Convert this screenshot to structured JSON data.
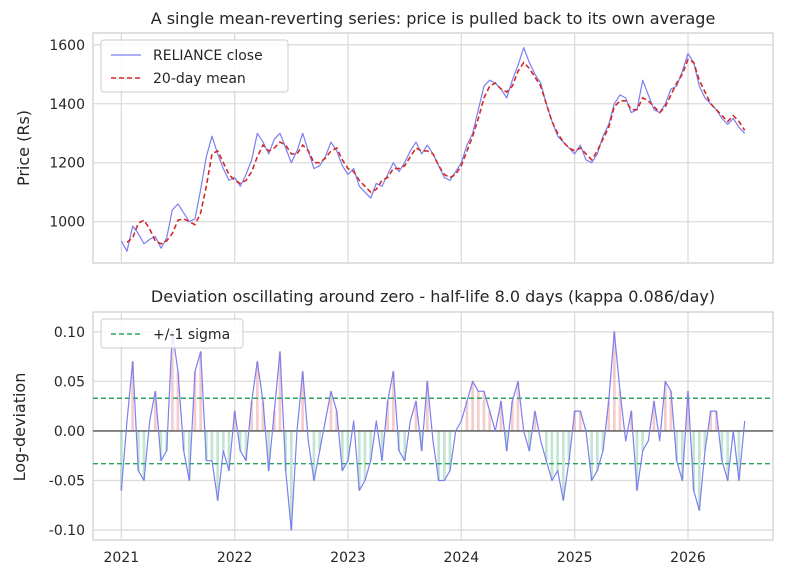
{
  "chart_data": [
    {
      "type": "line",
      "title": "A single mean-reverting series: price is pulled back to its own average",
      "xlabel": "",
      "ylabel": "Price (Rs)",
      "xlim": [
        2020.75,
        2026.75
      ],
      "ylim": [
        860,
        1640
      ],
      "yticks": [
        1000,
        1200,
        1400,
        1600
      ],
      "grid": true,
      "legend": "top-left",
      "series": [
        {
          "name": "RELIANCE close",
          "color": "#7b7ff0",
          "x": [
            2021.0,
            2021.05,
            2021.1,
            2021.15,
            2021.2,
            2021.25,
            2021.3,
            2021.35,
            2021.4,
            2021.45,
            2021.5,
            2021.55,
            2021.6,
            2021.65,
            2021.7,
            2021.75,
            2021.8,
            2021.85,
            2021.9,
            2021.95,
            2022.0,
            2022.05,
            2022.1,
            2022.15,
            2022.2,
            2022.25,
            2022.3,
            2022.35,
            2022.4,
            2022.45,
            2022.5,
            2022.55,
            2022.6,
            2022.65,
            2022.7,
            2022.75,
            2022.8,
            2022.85,
            2022.9,
            2022.95,
            2023.0,
            2023.05,
            2023.1,
            2023.15,
            2023.2,
            2023.25,
            2023.3,
            2023.35,
            2023.4,
            2023.45,
            2023.5,
            2023.55,
            2023.6,
            2023.65,
            2023.7,
            2023.75,
            2023.8,
            2023.85,
            2023.9,
            2023.95,
            2024.0,
            2024.05,
            2024.1,
            2024.15,
            2024.2,
            2024.25,
            2024.3,
            2024.35,
            2024.4,
            2024.45,
            2024.5,
            2024.55,
            2024.6,
            2024.65,
            2024.7,
            2024.75,
            2024.8,
            2024.85,
            2024.9,
            2024.95,
            2025.0,
            2025.05,
            2025.1,
            2025.15,
            2025.2,
            2025.25,
            2025.3,
            2025.35,
            2025.4,
            2025.45,
            2025.5,
            2025.55,
            2025.6,
            2025.65,
            2025.7,
            2025.75,
            2025.8,
            2025.85,
            2025.9,
            2025.95,
            2026.0,
            2026.05,
            2026.1,
            2026.15,
            2026.2,
            2026.25,
            2026.3,
            2026.35,
            2026.4,
            2026.45,
            2026.5
          ],
          "values": [
            935,
            900,
            985,
            960,
            925,
            940,
            950,
            910,
            945,
            1040,
            1060,
            1030,
            1000,
            1010,
            1110,
            1220,
            1290,
            1230,
            1180,
            1140,
            1150,
            1120,
            1160,
            1210,
            1300,
            1270,
            1230,
            1280,
            1300,
            1250,
            1200,
            1240,
            1300,
            1240,
            1180,
            1190,
            1220,
            1270,
            1240,
            1190,
            1160,
            1180,
            1120,
            1100,
            1080,
            1130,
            1120,
            1160,
            1200,
            1170,
            1200,
            1240,
            1270,
            1230,
            1260,
            1230,
            1190,
            1150,
            1140,
            1170,
            1200,
            1260,
            1300,
            1380,
            1460,
            1480,
            1470,
            1450,
            1420,
            1480,
            1530,
            1590,
            1540,
            1500,
            1470,
            1400,
            1340,
            1290,
            1270,
            1250,
            1230,
            1260,
            1210,
            1200,
            1230,
            1290,
            1330,
            1400,
            1430,
            1420,
            1370,
            1380,
            1480,
            1430,
            1380,
            1370,
            1400,
            1450,
            1460,
            1510,
            1570,
            1540,
            1460,
            1420,
            1400,
            1380,
            1350,
            1330,
            1350,
            1320,
            1300
          ]
        },
        {
          "name": "20-day mean",
          "color": "#d62728",
          "x": [
            2021.05,
            2021.1,
            2021.15,
            2021.2,
            2021.25,
            2021.3,
            2021.35,
            2021.4,
            2021.45,
            2021.5,
            2021.55,
            2021.6,
            2021.65,
            2021.7,
            2021.75,
            2021.8,
            2021.85,
            2021.9,
            2021.95,
            2022.0,
            2022.05,
            2022.1,
            2022.15,
            2022.2,
            2022.25,
            2022.3,
            2022.35,
            2022.4,
            2022.45,
            2022.5,
            2022.55,
            2022.6,
            2022.65,
            2022.7,
            2022.75,
            2022.8,
            2022.85,
            2022.9,
            2022.95,
            2023.0,
            2023.05,
            2023.1,
            2023.15,
            2023.2,
            2023.25,
            2023.3,
            2023.35,
            2023.4,
            2023.45,
            2023.5,
            2023.55,
            2023.6,
            2023.65,
            2023.7,
            2023.75,
            2023.8,
            2023.85,
            2023.9,
            2023.95,
            2024.0,
            2024.05,
            2024.1,
            2024.15,
            2024.2,
            2024.25,
            2024.3,
            2024.35,
            2024.4,
            2024.45,
            2024.5,
            2024.55,
            2024.6,
            2024.65,
            2024.7,
            2024.75,
            2024.8,
            2024.85,
            2024.9,
            2024.95,
            2025.0,
            2025.05,
            2025.1,
            2025.15,
            2025.2,
            2025.25,
            2025.3,
            2025.35,
            2025.4,
            2025.45,
            2025.5,
            2025.55,
            2025.6,
            2025.65,
            2025.7,
            2025.75,
            2025.8,
            2025.85,
            2025.9,
            2025.95,
            2026.0,
            2026.05,
            2026.1,
            2026.15,
            2026.2,
            2026.25,
            2026.3,
            2026.35,
            2026.4,
            2026.45,
            2026.5
          ],
          "values": [
            930,
            945,
            995,
            1005,
            975,
            935,
            925,
            935,
            960,
            1005,
            1010,
            1000,
            990,
            1030,
            1120,
            1230,
            1240,
            1200,
            1160,
            1140,
            1130,
            1140,
            1170,
            1220,
            1260,
            1240,
            1250,
            1270,
            1260,
            1230,
            1230,
            1260,
            1240,
            1200,
            1200,
            1215,
            1240,
            1250,
            1210,
            1180,
            1170,
            1140,
            1120,
            1100,
            1110,
            1140,
            1150,
            1180,
            1180,
            1190,
            1220,
            1250,
            1240,
            1240,
            1230,
            1190,
            1160,
            1150,
            1160,
            1190,
            1240,
            1290,
            1350,
            1420,
            1460,
            1470,
            1450,
            1440,
            1460,
            1510,
            1540,
            1520,
            1490,
            1460,
            1400,
            1340,
            1300,
            1270,
            1250,
            1240,
            1250,
            1230,
            1210,
            1240,
            1280,
            1320,
            1390,
            1410,
            1410,
            1380,
            1380,
            1420,
            1410,
            1390,
            1370,
            1390,
            1430,
            1470,
            1500,
            1550,
            1540,
            1480,
            1440,
            1400,
            1380,
            1360,
            1340,
            1360,
            1340,
            1310
          ]
        }
      ]
    },
    {
      "type": "line",
      "title": "Deviation oscillating around zero  -  half-life 8.0 days (kappa 0.086/day)",
      "xlabel": "",
      "ylabel": "Log-deviation",
      "xlim": [
        2020.75,
        2026.75
      ],
      "ylim": [
        -0.11,
        0.12
      ],
      "yticks": [
        -0.1,
        -0.05,
        0.0,
        0.05,
        0.1
      ],
      "xticks": [
        "2021",
        "2022",
        "2023",
        "2024",
        "2025",
        "2026"
      ],
      "grid": true,
      "legend": "top-left",
      "sigma": 0.033,
      "series": [
        {
          "name": "",
          "color": "#7b7ff0",
          "x": [
            2021.0,
            2021.05,
            2021.1,
            2021.15,
            2021.2,
            2021.25,
            2021.3,
            2021.35,
            2021.4,
            2021.45,
            2021.5,
            2021.55,
            2021.6,
            2021.65,
            2021.7,
            2021.75,
            2021.8,
            2021.85,
            2021.9,
            2021.95,
            2022.0,
            2022.05,
            2022.1,
            2022.15,
            2022.2,
            2022.25,
            2022.3,
            2022.35,
            2022.4,
            2022.45,
            2022.5,
            2022.55,
            2022.6,
            2022.65,
            2022.7,
            2022.75,
            2022.8,
            2022.85,
            2022.9,
            2022.95,
            2023.0,
            2023.05,
            2023.1,
            2023.15,
            2023.2,
            2023.25,
            2023.3,
            2023.35,
            2023.4,
            2023.45,
            2023.5,
            2023.55,
            2023.6,
            2023.65,
            2023.7,
            2023.75,
            2023.8,
            2023.85,
            2023.9,
            2023.95,
            2024.0,
            2024.05,
            2024.1,
            2024.15,
            2024.2,
            2024.25,
            2024.3,
            2024.35,
            2024.4,
            2024.45,
            2024.5,
            2024.55,
            2024.6,
            2024.65,
            2024.7,
            2024.75,
            2024.8,
            2024.85,
            2024.9,
            2024.95,
            2025.0,
            2025.05,
            2025.1,
            2025.15,
            2025.2,
            2025.25,
            2025.3,
            2025.35,
            2025.4,
            2025.45,
            2025.5,
            2025.55,
            2025.6,
            2025.65,
            2025.7,
            2025.75,
            2025.8,
            2025.85,
            2025.9,
            2025.95,
            2026.0,
            2026.05,
            2026.1,
            2026.15,
            2026.2,
            2026.25,
            2026.3,
            2026.35,
            2026.4,
            2026.45,
            2026.5
          ],
          "values": [
            -0.06,
            0.01,
            0.07,
            -0.04,
            -0.05,
            0.01,
            0.04,
            -0.03,
            -0.02,
            0.1,
            0.06,
            -0.02,
            -0.05,
            0.06,
            0.08,
            -0.03,
            -0.03,
            -0.07,
            -0.02,
            -0.04,
            0.02,
            -0.02,
            -0.03,
            0.03,
            0.07,
            0.03,
            -0.04,
            0.02,
            0.08,
            -0.04,
            -0.1,
            0.0,
            0.06,
            -0.01,
            -0.05,
            -0.02,
            0.01,
            0.04,
            0.02,
            -0.04,
            -0.03,
            0.01,
            -0.06,
            -0.05,
            -0.03,
            0.01,
            -0.03,
            0.03,
            0.06,
            -0.02,
            -0.03,
            0.01,
            0.03,
            -0.02,
            0.05,
            -0.01,
            -0.05,
            -0.05,
            -0.04,
            0.0,
            0.01,
            0.03,
            0.05,
            0.04,
            0.04,
            0.02,
            0.0,
            0.03,
            -0.02,
            0.03,
            0.05,
            0.0,
            -0.02,
            0.02,
            -0.01,
            -0.03,
            -0.05,
            -0.04,
            -0.07,
            -0.03,
            0.02,
            0.02,
            0.0,
            -0.05,
            -0.04,
            -0.02,
            0.03,
            0.1,
            0.04,
            -0.01,
            0.02,
            -0.06,
            -0.02,
            -0.01,
            0.03,
            -0.01,
            0.05,
            0.04,
            -0.03,
            -0.05,
            0.04,
            -0.06,
            -0.08,
            -0.02,
            0.02,
            0.02,
            -0.03,
            -0.05,
            0.0,
            -0.05,
            0.01
          ]
        },
        {
          "name": "+/-1 sigma",
          "color": "#2ca25f",
          "values": [
            0.033,
            -0.033
          ]
        }
      ]
    }
  ]
}
